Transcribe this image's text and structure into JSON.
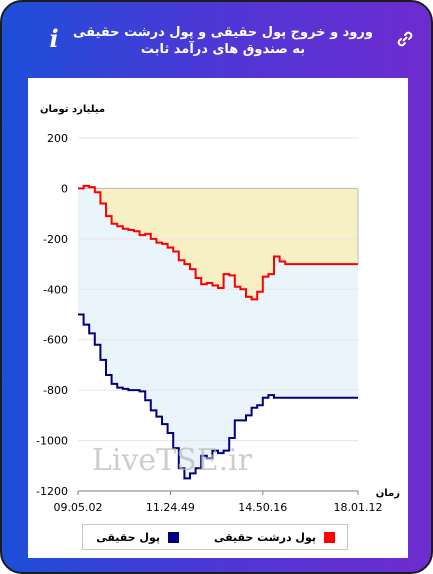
{
  "header": {
    "title": "ورود و خروج پول حقیقی و پول درشت حقیقی به صندوق های درآمد ثابت",
    "info_icon": "info-icon",
    "link_icon": "link-icon"
  },
  "colors": {
    "brand_gradient_start": "#1d4fd8",
    "brand_gradient_end": "#6e2bd0",
    "series_real_money": "#000080",
    "series_large_real_money": "#ff0000",
    "fill_lower": "#eaf4fb",
    "fill_upper": "#f6f0c4"
  },
  "chart_data": {
    "type": "line",
    "title": "",
    "ylabel": "میلیارد تومان",
    "xlabel": "زمان",
    "ylim": [
      -1200,
      200
    ],
    "yticks": [
      200,
      0,
      -200,
      -400,
      -600,
      -800,
      -1000,
      -1200
    ],
    "xticks": [
      "09.05.02",
      "11.24.49",
      "14.50.16",
      "18.01.12"
    ],
    "grid": true,
    "legend_position": "bottom",
    "watermark": "LiveTSE.ir",
    "series": [
      {
        "name": "پول درشت حقیقی",
        "color": "#ff0000",
        "x": [
          0,
          2,
          4,
          6,
          8,
          10,
          12,
          14,
          16,
          18,
          20,
          22,
          24,
          26,
          28,
          30,
          32,
          34,
          36,
          38,
          40,
          42,
          44,
          46,
          48,
          50,
          52,
          54,
          56,
          58,
          60,
          62,
          64,
          66,
          68,
          70,
          72,
          74,
          76,
          78,
          80,
          82,
          84,
          86,
          88,
          90,
          92,
          94,
          96,
          98,
          100
        ],
        "values": [
          0,
          10,
          5,
          -15,
          -60,
          -110,
          -140,
          -150,
          -160,
          -165,
          -170,
          -185,
          -180,
          -200,
          -215,
          -220,
          -235,
          -250,
          -285,
          -300,
          -320,
          -355,
          -380,
          -375,
          -385,
          -395,
          -340,
          -345,
          -390,
          -400,
          -430,
          -440,
          -410,
          -350,
          -340,
          -270,
          -290,
          -300,
          -300,
          -300,
          -300,
          -300,
          -300,
          -300,
          -300,
          -300,
          -300,
          -300,
          -300,
          -300,
          -300
        ]
      },
      {
        "name": "پول حقیقی",
        "color": "#000080",
        "x": [
          0,
          2,
          4,
          6,
          8,
          10,
          12,
          14,
          16,
          18,
          20,
          22,
          24,
          26,
          28,
          30,
          32,
          34,
          36,
          38,
          40,
          42,
          44,
          46,
          48,
          50,
          52,
          54,
          56,
          58,
          60,
          62,
          64,
          66,
          68,
          70,
          72,
          74,
          76,
          78,
          80,
          82,
          84,
          86,
          88,
          90,
          92,
          94,
          96,
          98,
          100
        ],
        "values": [
          -500,
          -540,
          -575,
          -620,
          -680,
          -740,
          -775,
          -790,
          -795,
          -800,
          -800,
          -805,
          -840,
          -880,
          -905,
          -935,
          -970,
          -1030,
          -1110,
          -1150,
          -1130,
          -1110,
          -1060,
          -1070,
          -1040,
          -1050,
          -1040,
          -990,
          -920,
          -920,
          -900,
          -870,
          -860,
          -830,
          -820,
          -830,
          -830,
          -830,
          -830,
          -830,
          -830,
          -830,
          -830,
          -830,
          -830,
          -830,
          -830,
          -830,
          -830,
          -830,
          -830
        ]
      }
    ]
  }
}
